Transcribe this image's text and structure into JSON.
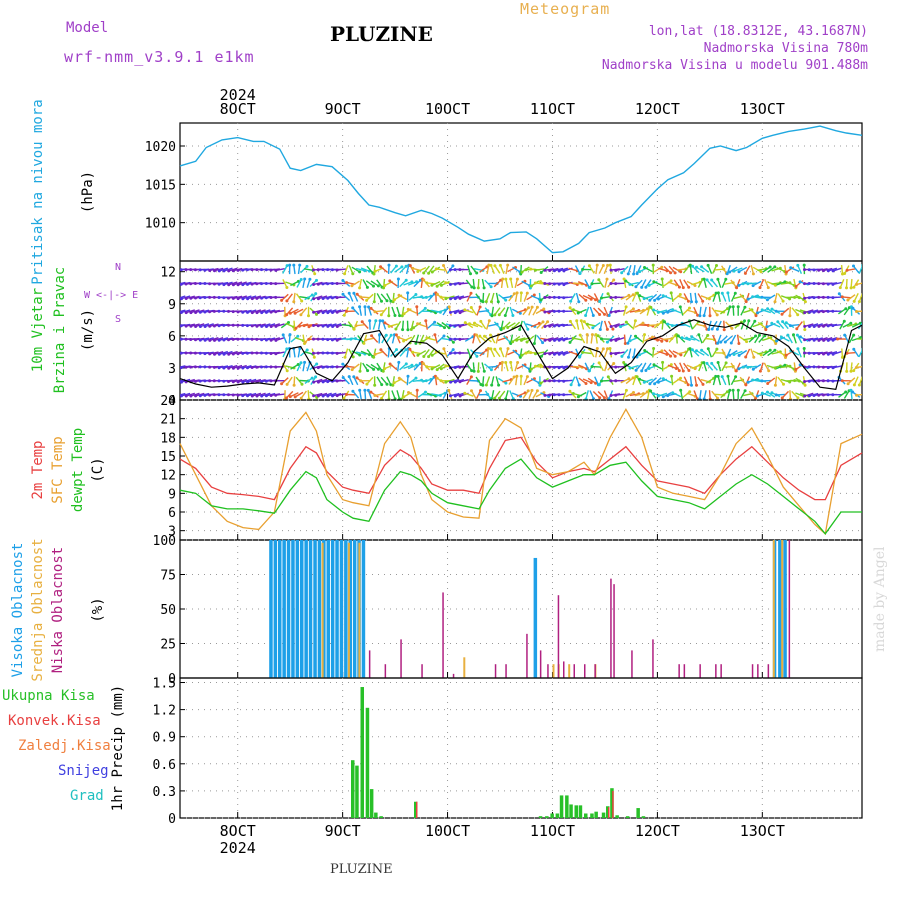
{
  "header": {
    "model_label": "Model",
    "model_value": "wrf-nmm_v3.9.1 e1km",
    "title": "PLUZINE",
    "meteogram": "Meteogram",
    "lonlat": "lon,lat (18.8312E, 43.1687N)",
    "elevation": "Nadmorska Visina 780m",
    "model_elevation": "Nadmorska Visina u modelu 901.488m",
    "footer": "PLUZINE",
    "watermark": "made by Angel"
  },
  "time_axis": {
    "year": "2024",
    "labels": [
      "8OCT",
      "9OCT",
      "10OCT",
      "11OCT",
      "12OCT",
      "13OCT"
    ],
    "day_positions": [
      8,
      9,
      10,
      11,
      12,
      13
    ],
    "start_day": 7.45,
    "end_day": 13.95
  },
  "colors": {
    "pressure": "#20a8e0",
    "t2m": "#e84040",
    "tsfc": "#e8a030",
    "dewpt": "#20c020",
    "high_cloud": "#1ea0e8",
    "mid_cloud": "#e8b040",
    "low_cloud": "#b02080",
    "precip_total": "#28c028",
    "precip_conv": "#e84040",
    "precip_frz": "#f08040",
    "snow": "#4040e0",
    "graupel": "#20c0c0"
  },
  "chart_data": [
    {
      "type": "line",
      "name": "pressure",
      "ylabel": "Pritisak na nivou mora",
      "unit": "(hPa)",
      "ylim": [
        1005,
        1023
      ],
      "yticks": [
        1010,
        1015,
        1020
      ],
      "grid": true,
      "x": [
        7.45,
        7.6,
        7.7,
        7.85,
        8.0,
        8.15,
        8.25,
        8.4,
        8.5,
        8.6,
        8.75,
        8.9,
        9.05,
        9.15,
        9.25,
        9.35,
        9.5,
        9.6,
        9.75,
        9.85,
        9.95,
        10.1,
        10.2,
        10.35,
        10.5,
        10.6,
        10.75,
        10.85,
        11.0,
        11.1,
        11.25,
        11.35,
        11.5,
        11.6,
        11.75,
        11.85,
        12.0,
        12.1,
        12.25,
        12.35,
        12.5,
        12.6,
        12.75,
        12.85,
        13.0,
        13.1,
        13.25,
        13.4,
        13.55,
        13.7,
        13.8,
        13.95
      ],
      "y": [
        1017.4,
        1018.0,
        1019.8,
        1020.8,
        1021.1,
        1020.6,
        1020.6,
        1019.6,
        1017.1,
        1016.8,
        1017.6,
        1017.3,
        1015.5,
        1013.8,
        1012.3,
        1012.0,
        1011.3,
        1010.9,
        1011.6,
        1011.2,
        1010.6,
        1009.4,
        1008.5,
        1007.6,
        1007.9,
        1008.7,
        1008.8,
        1007.9,
        1006.1,
        1006.2,
        1007.3,
        1008.7,
        1009.3,
        1010.0,
        1010.8,
        1012.3,
        1014.4,
        1015.6,
        1016.5,
        1017.7,
        1019.7,
        1020.0,
        1019.4,
        1019.8,
        1021.0,
        1021.4,
        1021.9,
        1022.2,
        1022.6,
        1022.0,
        1021.7,
        1021.4
      ]
    },
    {
      "type": "line",
      "name": "wind",
      "ylabel": "10m Vjetar",
      "ylabel2": "Brzina i Pravac",
      "unit": "(m/s)",
      "compass": "W <-|-> E",
      "compass_n": "N",
      "compass_s": "S",
      "ylim": [
        0,
        13
      ],
      "yticks": [
        0,
        3,
        6,
        9,
        12
      ],
      "grid": true,
      "x": [
        7.45,
        7.6,
        7.75,
        7.9,
        8.05,
        8.2,
        8.35,
        8.5,
        8.6,
        8.75,
        8.9,
        9.05,
        9.2,
        9.35,
        9.5,
        9.65,
        9.8,
        9.95,
        10.1,
        10.25,
        10.4,
        10.55,
        10.7,
        10.85,
        11.0,
        11.15,
        11.3,
        11.45,
        11.6,
        11.75,
        11.9,
        12.05,
        12.2,
        12.35,
        12.5,
        12.65,
        12.8,
        12.95,
        13.1,
        13.25,
        13.4,
        13.55,
        13.7,
        13.85,
        13.95
      ],
      "y": [
        2.0,
        1.5,
        1.2,
        1.3,
        1.5,
        1.6,
        1.4,
        4.8,
        5.0,
        2.5,
        1.8,
        3.5,
        6.2,
        6.5,
        4.0,
        5.5,
        5.3,
        4.2,
        2.0,
        4.5,
        5.8,
        6.3,
        7.0,
        4.5,
        2.0,
        3.0,
        5.0,
        4.5,
        2.5,
        3.5,
        5.5,
        6.0,
        7.0,
        7.5,
        7.0,
        6.8,
        7.2,
        6.3,
        6.0,
        5.0,
        3.0,
        1.2,
        1.0,
        6.5,
        7.0
      ]
    },
    {
      "type": "line",
      "name": "temperature",
      "ylabels": [
        "2m Temp",
        "SFC Temp",
        "dewpt Temp"
      ],
      "unit": "(C)",
      "ylim": [
        1.5,
        24
      ],
      "yticks": [
        3,
        6,
        9,
        12,
        15,
        18,
        21,
        24
      ],
      "grid": true,
      "x": [
        7.45,
        7.6,
        7.75,
        7.9,
        8.05,
        8.2,
        8.35,
        8.5,
        8.65,
        8.75,
        8.85,
        9.0,
        9.1,
        9.25,
        9.4,
        9.55,
        9.65,
        9.75,
        9.85,
        10.0,
        10.15,
        10.3,
        10.4,
        10.55,
        10.7,
        10.85,
        11.0,
        11.15,
        11.3,
        11.4,
        11.55,
        11.7,
        11.85,
        12.0,
        12.15,
        12.3,
        12.45,
        12.6,
        12.75,
        12.9,
        13.05,
        13.2,
        13.35,
        13.5,
        13.6,
        13.75,
        13.95
      ],
      "series": [
        {
          "name": "2m Temp",
          "values": [
            14.5,
            13.0,
            10.0,
            9.0,
            8.8,
            8.5,
            8.0,
            13.0,
            16.5,
            15.5,
            12.5,
            10.0,
            9.5,
            9.0,
            13.5,
            16.0,
            15.0,
            13.0,
            10.5,
            9.5,
            9.5,
            9.0,
            13.0,
            17.5,
            18.0,
            14.0,
            11.5,
            12.5,
            13.0,
            12.5,
            14.5,
            16.5,
            13.5,
            11.0,
            10.5,
            10.0,
            9.0,
            12.0,
            14.5,
            16.5,
            14.0,
            11.5,
            9.5,
            8.0,
            8.0,
            13.5,
            15.5
          ]
        },
        {
          "name": "SFC Temp",
          "values": [
            17.0,
            12.0,
            7.0,
            4.5,
            3.5,
            3.2,
            6.0,
            19.0,
            22.0,
            19.0,
            12.0,
            8.0,
            7.5,
            7.0,
            17.0,
            20.5,
            18.0,
            12.0,
            8.0,
            6.0,
            5.2,
            5.0,
            17.5,
            21.0,
            19.5,
            13.0,
            12.0,
            12.5,
            14.0,
            12.0,
            18.0,
            22.5,
            18.0,
            10.0,
            9.0,
            8.5,
            8.0,
            12.0,
            17.0,
            19.5,
            15.0,
            10.0,
            7.0,
            4.0,
            2.5,
            17.0,
            18.5
          ]
        },
        {
          "name": "dewpt Temp",
          "values": [
            9.5,
            9.0,
            7.0,
            6.5,
            6.5,
            6.2,
            5.8,
            9.5,
            12.5,
            11.5,
            8.0,
            6.0,
            5.0,
            4.5,
            9.5,
            12.5,
            12.0,
            11.0,
            9.0,
            7.5,
            7.0,
            6.5,
            9.5,
            13.0,
            14.5,
            11.5,
            10.0,
            11.0,
            12.0,
            12.0,
            13.5,
            14.0,
            11.0,
            8.5,
            8.0,
            7.5,
            6.5,
            8.5,
            10.5,
            12.0,
            10.5,
            8.5,
            6.5,
            4.5,
            2.5,
            6.0,
            6.0
          ]
        }
      ]
    },
    {
      "type": "bar",
      "name": "clouds",
      "ylabels": [
        "Visoka Oblacnost",
        "Srednja Oblacnost",
        "Niska Oblacnost"
      ],
      "unit": "(%)",
      "ylim": [
        0,
        100
      ],
      "yticks": [
        0,
        25,
        50,
        75,
        100
      ],
      "grid": true,
      "high": {
        "start": 8.3,
        "end": 9.2,
        "value": 100
      },
      "high_extra": [
        [
          10.82,
          87
        ],
        [
          13.1,
          100
        ],
        [
          13.15,
          100
        ],
        [
          13.2,
          100
        ]
      ],
      "mid": [
        [
          8.8,
          98
        ],
        [
          9.05,
          98
        ],
        [
          9.15,
          98
        ],
        [
          10.15,
          15
        ],
        [
          11.0,
          10
        ],
        [
          11.05,
          10
        ],
        [
          11.15,
          10
        ],
        [
          11.4,
          10
        ],
        [
          13.1,
          100
        ],
        [
          13.18,
          100
        ]
      ],
      "low": [
        [
          9.25,
          20
        ],
        [
          9.4,
          10
        ],
        [
          9.55,
          28
        ],
        [
          9.75,
          10
        ],
        [
          9.95,
          62
        ],
        [
          10.05,
          3
        ],
        [
          10.45,
          10
        ],
        [
          10.55,
          10
        ],
        [
          10.75,
          32
        ],
        [
          10.88,
          20
        ],
        [
          10.95,
          10
        ],
        [
          11.05,
          60
        ],
        [
          11.1,
          12
        ],
        [
          11.2,
          10
        ],
        [
          11.3,
          10
        ],
        [
          11.4,
          10
        ],
        [
          11.55,
          72
        ],
        [
          11.58,
          68
        ],
        [
          11.75,
          20
        ],
        [
          11.95,
          28
        ],
        [
          12.2,
          10
        ],
        [
          12.25,
          10
        ],
        [
          12.4,
          10
        ],
        [
          12.55,
          10
        ],
        [
          12.6,
          10
        ],
        [
          12.9,
          10
        ],
        [
          12.95,
          10
        ],
        [
          13.05,
          10
        ],
        [
          13.25,
          100
        ]
      ]
    },
    {
      "type": "bar",
      "name": "precipitation",
      "ylabels": [
        "Ukupna Kisa",
        "Konvek.Kisa",
        "Zaledj.Kisa",
        "Snijeg",
        "Grad"
      ],
      "ylabel": "1hr Precip (mm)",
      "ylim": [
        0,
        1.55
      ],
      "yticks": [
        0,
        0.3,
        0.6,
        0.9,
        1.2,
        1.5
      ],
      "grid": true,
      "total": [
        [
          9.08,
          0.64
        ],
        [
          9.12,
          0.58
        ],
        [
          9.17,
          1.45
        ],
        [
          9.22,
          1.22
        ],
        [
          9.26,
          0.32
        ],
        [
          9.3,
          0.06
        ],
        [
          9.35,
          0.02
        ],
        [
          9.68,
          0.18
        ],
        [
          10.87,
          0.02
        ],
        [
          10.93,
          0.02
        ],
        [
          10.98,
          0.05
        ],
        [
          11.03,
          0.05
        ],
        [
          11.07,
          0.25
        ],
        [
          11.12,
          0.25
        ],
        [
          11.16,
          0.15
        ],
        [
          11.21,
          0.14
        ],
        [
          11.25,
          0.14
        ],
        [
          11.3,
          0.05
        ],
        [
          11.36,
          0.05
        ],
        [
          11.4,
          0.07
        ],
        [
          11.47,
          0.06
        ],
        [
          11.51,
          0.13
        ],
        [
          11.55,
          0.33
        ],
        [
          11.6,
          0.03
        ],
        [
          11.7,
          0.02
        ],
        [
          11.8,
          0.11
        ],
        [
          11.85,
          0.02
        ]
      ],
      "convective": [
        [
          9.69,
          0.18
        ],
        [
          11.52,
          0.12
        ],
        [
          11.56,
          0.3
        ]
      ]
    }
  ]
}
